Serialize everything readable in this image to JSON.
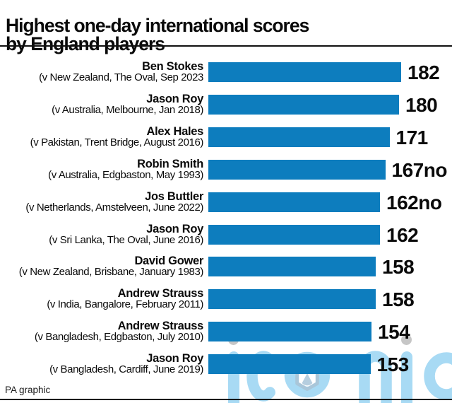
{
  "title": {
    "line1": "Highest one-day international scores",
    "line2": "by England players"
  },
  "credit": "PA graphic",
  "watermark": {
    "text": "iconic"
  },
  "colors": {
    "bar": "#0d7dbe",
    "text": "#0a0a0a",
    "watermark_blue": "#a8daf4",
    "watermark_gray": "#c6c6c6",
    "watermark_hex_outline": "#a9c6d9"
  },
  "chart_data": {
    "type": "bar",
    "orientation": "horizontal",
    "title": "Highest one-day international scores by England players",
    "xlabel": "",
    "ylabel": "",
    "xlim": [
      0,
      190
    ],
    "grid": false,
    "legend": false,
    "categories": [
      "Ben Stokes",
      "Jason Roy",
      "Alex Hales",
      "Robin Smith",
      "Jos Buttler",
      "Jason Roy",
      "David Gower",
      "Andrew Strauss",
      "Andrew Strauss",
      "Jason Roy"
    ],
    "values": [
      182,
      180,
      171,
      167,
      162,
      162,
      158,
      158,
      154,
      153
    ],
    "value_labels": [
      "182",
      "180",
      "171",
      "167no",
      "162no",
      "162",
      "158",
      "158",
      "154",
      "153"
    ],
    "bars": [
      {
        "player": "Ben Stokes",
        "match": "(v New Zealand, The Oval, Sep 2023",
        "value": 182,
        "label": "182"
      },
      {
        "player": "Jason Roy",
        "match": "(v Australia, Melbourne, Jan 2018)",
        "value": 180,
        "label": "180"
      },
      {
        "player": "Alex Hales",
        "match": "(v Pakistan, Trent Bridge, August 2016)",
        "value": 171,
        "label": "171"
      },
      {
        "player": "Robin Smith",
        "match": "(v Australia, Edgbaston, May 1993)",
        "value": 167,
        "label": "167no"
      },
      {
        "player": "Jos Buttler",
        "match": "(v Netherlands, Amstelveen, June 2022)",
        "value": 162,
        "label": "162no"
      },
      {
        "player": "Jason Roy",
        "match": "(v Sri Lanka, The Oval, June 2016)",
        "value": 162,
        "label": "162"
      },
      {
        "player": "David Gower",
        "match": "(v New Zealand, Brisbane, January 1983)",
        "value": 158,
        "label": "158"
      },
      {
        "player": "Andrew Strauss",
        "match": "(v India, Bangalore, February 2011)",
        "value": 158,
        "label": "158"
      },
      {
        "player": "Andrew Strauss",
        "match": "(v Bangladesh, Edgbaston, July 2010)",
        "value": 154,
        "label": "154"
      },
      {
        "player": "Jason Roy",
        "match": "(v Bangladesh, Cardiff, June 2019)",
        "value": 153,
        "label": "153"
      }
    ]
  }
}
